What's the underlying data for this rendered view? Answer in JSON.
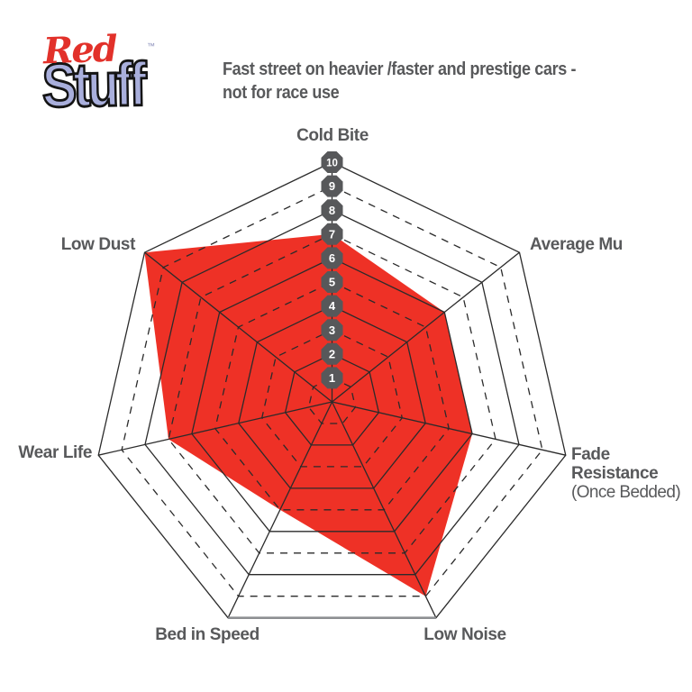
{
  "logo": {
    "red": "Red",
    "stuff": "Stuff",
    "trademark": "™"
  },
  "header": {
    "description": "Fast street on heavier /faster and prestige cars -\nnot for race use"
  },
  "labels": {
    "cold_bite": "Cold Bite",
    "average_mu": "Average Mu",
    "fade_resistance": "Fade\nResistance",
    "fade_resistance_sub": "(Once Bedded)",
    "low_noise": "Low Noise",
    "bed_in_speed": "Bed in Speed",
    "wear_life": "Wear Life",
    "low_dust": "Low Dust"
  },
  "chart_data": {
    "type": "radar",
    "axes": [
      "Cold Bite",
      "Average Mu",
      "Fade Resistance",
      "Low Noise",
      "Bed in Speed",
      "Wear Life",
      "Low Dust"
    ],
    "values": [
      7,
      6,
      6,
      9,
      5,
      7,
      10
    ],
    "fade_resistance_note": "(Once Bedded)",
    "scale": {
      "min": 1,
      "max": 10,
      "badge_labels": [
        "1",
        "2",
        "3",
        "4",
        "5",
        "6",
        "7",
        "8",
        "9",
        "10"
      ]
    },
    "grid": "on",
    "grid_style": "even rings solid, odd rings dashed",
    "legend_position": "none",
    "colors": {
      "fill": "#EE3126",
      "grid": "#2B2B2B",
      "badge": "#57585A",
      "badge_text": "#FFFFFF",
      "label": "#58595B",
      "bottom_edge": "#8D8F92"
    }
  }
}
